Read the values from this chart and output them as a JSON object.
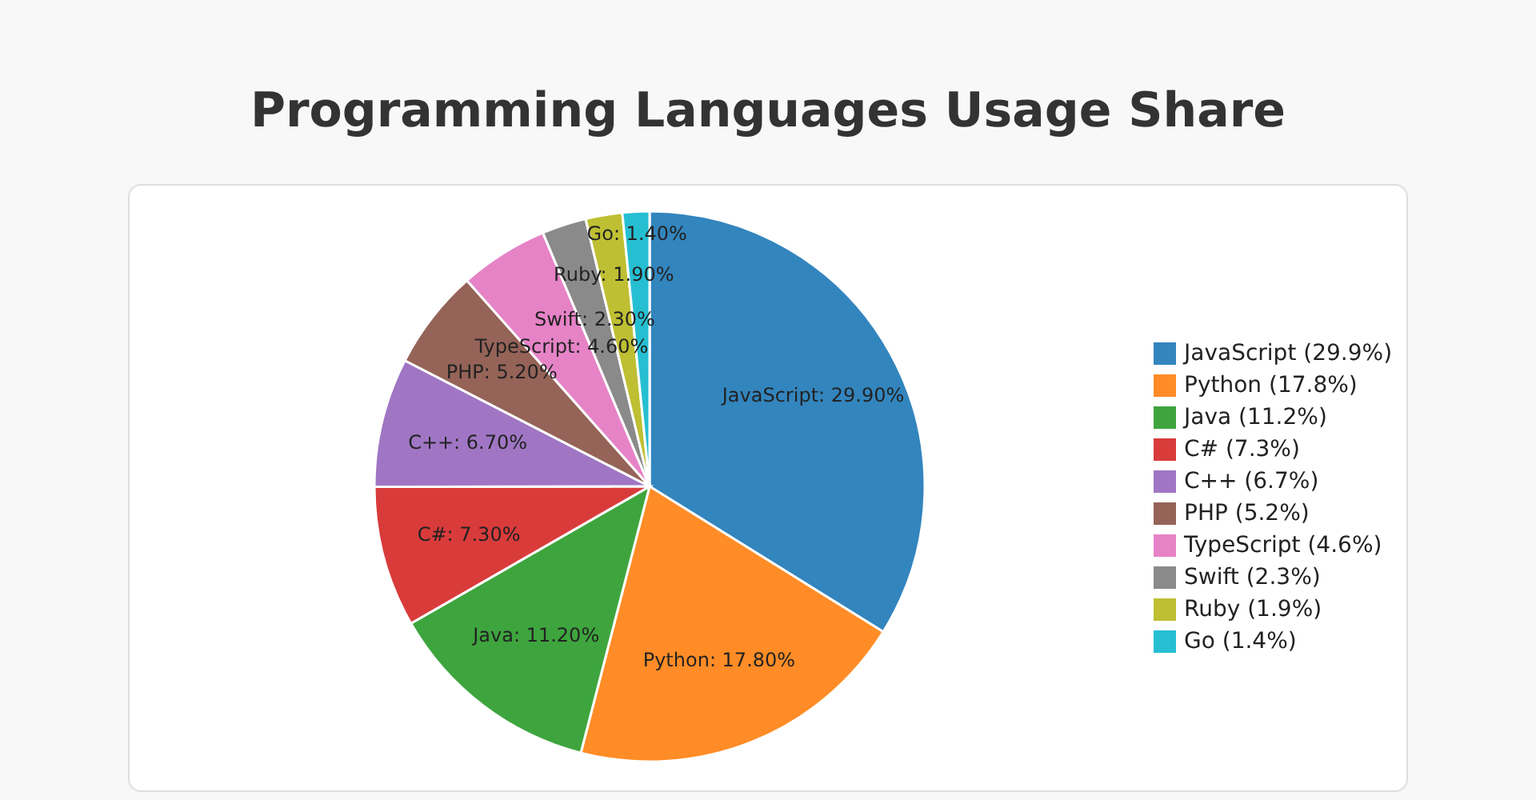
{
  "chart_data": {
    "type": "pie",
    "title": "Programming Languages Usage Share",
    "categories": [
      "JavaScript (29.9%)",
      "Python (17.8%)",
      "Java (11.2%)",
      "C# (7.3%)",
      "C++ (6.7%)",
      "PHP (5.2%)",
      "TypeScript (4.6%)",
      "Swift (2.3%)",
      "Ruby (1.9%)",
      "Go (1.4%)"
    ],
    "values": [
      29.9,
      17.8,
      11.2,
      7.3,
      6.7,
      5.2,
      4.6,
      2.3,
      1.9,
      1.4
    ],
    "value_labels": [
      "JavaScript: 29.90%",
      "Python: 17.80%",
      "Java: 11.20%",
      "C#: 7.30%",
      "C++: 6.70%",
      "PHP: 5.20%",
      "TypeScript: 4.60%",
      "Swift: 2.30%",
      "Ruby: 1.90%",
      "Go: 1.40%"
    ],
    "colors": [
      "#3385be",
      "#ff8c26",
      "#3ea53e",
      "#d93b3b",
      "#a076c4",
      "#956358",
      "#e683c7",
      "#8a8a8a",
      "#bfbf33",
      "#26bfd2"
    ],
    "legend": "right"
  }
}
